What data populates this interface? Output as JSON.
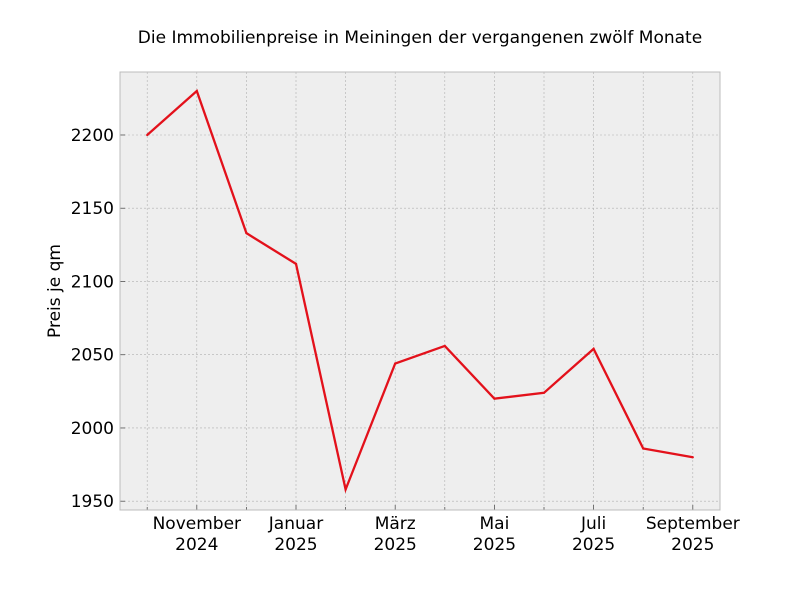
{
  "chart_data": {
    "type": "line",
    "title": "Die Immobilienpreise in Meiningen der vergangenen zwölf Monate",
    "xlabel": "",
    "ylabel": "Preis je qm",
    "x": [
      "2024-10",
      "2024-11",
      "2024-12",
      "2025-01",
      "2025-02",
      "2025-03",
      "2025-04",
      "2025-05",
      "2025-06",
      "2025-07",
      "2025-08",
      "2025-09"
    ],
    "series": [
      {
        "values": [
          2200,
          2230,
          2133,
          2112,
          1958,
          2044,
          2056,
          2020,
          2024,
          2054,
          1986,
          1980
        ]
      }
    ],
    "ylim": [
      1944,
      2243
    ],
    "yticks": [
      1950,
      2000,
      2050,
      2100,
      2150,
      2200
    ],
    "xticks": [
      {
        "x": "2024-11",
        "line1": "November",
        "line2": "2024"
      },
      {
        "x": "2025-01",
        "line1": "Januar",
        "line2": "2025"
      },
      {
        "x": "2025-03",
        "line1": "März",
        "line2": "2025"
      },
      {
        "x": "2025-05",
        "line1": "Mai",
        "line2": "2025"
      },
      {
        "x": "2025-07",
        "line1": "Juli",
        "line2": "2025"
      },
      {
        "x": "2025-09",
        "line1": "September",
        "line2": "2025"
      }
    ],
    "grid": true,
    "colors": {
      "line": "#e3111b",
      "background": "#eeeeee",
      "grid": "#b0b0b0",
      "frame": "#bcbcbc"
    }
  }
}
